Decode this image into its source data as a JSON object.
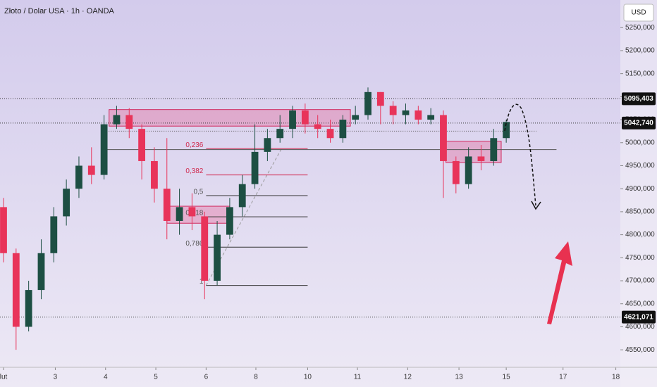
{
  "chart_data": {
    "type": "candlestick",
    "title": "Złoto / Dolar USA · 1h · OANDA",
    "currency": "USD",
    "up_color": "#1d4f43",
    "down_color": "#e8345a",
    "x": [
      0,
      0.25,
      0.5,
      0.75,
      1,
      1.25,
      1.5,
      1.75,
      2,
      2.25,
      2.5,
      2.75,
      3,
      3.25,
      3.5,
      3.75,
      4,
      4.25,
      4.5,
      4.75,
      5,
      5.25,
      5.5,
      5.75,
      6,
      6.25,
      6.5,
      6.75,
      7,
      7.25,
      7.5,
      7.75,
      8,
      8.25,
      8.5,
      8.75,
      9,
      9.25,
      9.5,
      9.75,
      10
    ],
    "open": [
      4860,
      4760,
      4600,
      4680,
      4760,
      4840,
      4900,
      4950,
      4930,
      5040,
      5060,
      5030,
      4960,
      4900,
      4830,
      4860,
      4840,
      4700,
      4800,
      4860,
      4910,
      4980,
      5010,
      5030,
      5070,
      5040,
      5030,
      5010,
      5050,
      5060,
      5110,
      5080,
      5060,
      5070,
      5050,
      5060,
      4960,
      4910,
      4970,
      4960,
      5010
    ],
    "high": [
      4880,
      4770,
      4700,
      4790,
      4860,
      4920,
      4970,
      4990,
      5060,
      5080,
      5075,
      5040,
      4990,
      5010,
      4900,
      4890,
      4850,
      4830,
      4880,
      4930,
      5040,
      5030,
      5060,
      5080,
      5085,
      5060,
      5050,
      5060,
      5080,
      5120,
      5110,
      5090,
      5085,
      5080,
      5075,
      5070,
      4970,
      4990,
      4995,
      5030,
      5050
    ],
    "low": [
      4740,
      4550,
      4590,
      4660,
      4740,
      4820,
      4880,
      4910,
      4920,
      5030,
      5010,
      4920,
      4870,
      4790,
      4800,
      4810,
      4660,
      4690,
      4790,
      4840,
      4900,
      4960,
      5000,
      5010,
      5020,
      5010,
      5000,
      5000,
      5040,
      5050,
      5040,
      5040,
      5040,
      5040,
      5040,
      4880,
      4890,
      4900,
      4940,
      4950,
      5000
    ],
    "close": [
      4760,
      4600,
      4680,
      4760,
      4840,
      4900,
      4950,
      4930,
      5040,
      5060,
      5030,
      4960,
      4900,
      4830,
      4860,
      4840,
      4700,
      4800,
      4860,
      4910,
      4980,
      5010,
      5030,
      5070,
      5040,
      5030,
      5010,
      5050,
      5060,
      5110,
      5080,
      5060,
      5070,
      5050,
      5060,
      4960,
      4910,
      4970,
      4960,
      5010,
      5045
    ],
    "xlim": [
      -0.07,
      12.27
    ],
    "ylim": [
      4512,
      5310
    ],
    "xticks": [
      {
        "value": 0,
        "label": "lut"
      },
      {
        "value": 1.03,
        "label": "3"
      },
      {
        "value": 2.03,
        "label": "4"
      },
      {
        "value": 3.03,
        "label": "5"
      },
      {
        "value": 4.03,
        "label": "6"
      },
      {
        "value": 5.02,
        "label": "8"
      },
      {
        "value": 6.05,
        "label": "10"
      },
      {
        "value": 7.04,
        "label": "11"
      },
      {
        "value": 8.04,
        "label": "12"
      },
      {
        "value": 9.06,
        "label": "13"
      },
      {
        "value": 10.0,
        "label": "15"
      },
      {
        "value": 11.13,
        "label": "17"
      },
      {
        "value": 12.18,
        "label": "18"
      }
    ],
    "yticks": [
      {
        "value": 4550,
        "label": "4550,000"
      },
      {
        "value": 4600,
        "label": "4600,000"
      },
      {
        "value": 4650,
        "label": "4650,000"
      },
      {
        "value": 4700,
        "label": "4700,000"
      },
      {
        "value": 4750,
        "label": "4750,000"
      },
      {
        "value": 4800,
        "label": "4800,000"
      },
      {
        "value": 4850,
        "label": "4850,000"
      },
      {
        "value": 4900,
        "label": "4900,000"
      },
      {
        "value": 4950,
        "label": "4950,000"
      },
      {
        "value": 5000,
        "label": "5000,000"
      },
      {
        "value": 5050,
        "label": "5050,000"
      },
      {
        "value": 5100,
        "label": "5100,000"
      },
      {
        "value": 5150,
        "label": "5150,000"
      },
      {
        "value": 5200,
        "label": "5200,000"
      },
      {
        "value": 5250,
        "label": "5250,000"
      }
    ],
    "price_lines": [
      {
        "value": 5095.403,
        "label": "5095,403"
      },
      {
        "value": 5042.74,
        "label": "5042,740"
      },
      {
        "value": 4621.071,
        "label": "4621,071"
      }
    ],
    "fib_levels": [
      {
        "value": 4987,
        "label": "0,236"
      },
      {
        "value": 4930,
        "label": "0,382"
      },
      {
        "value": 4885,
        "label": "0,5"
      },
      {
        "value": 4839,
        "label": "0,618"
      },
      {
        "value": 4773,
        "label": "0,786"
      },
      {
        "value": 4690,
        "label": "1"
      }
    ],
    "fib_x": [
      4.03,
      6.05
    ],
    "zones": [
      {
        "x": [
          2.1,
          6.9
        ],
        "y": [
          5036,
          5072
        ]
      },
      {
        "x": [
          3.25,
          4.5
        ],
        "y": [
          4825,
          4862
        ]
      },
      {
        "x": [
          8.8,
          9.9
        ],
        "y": [
          4957,
          5003
        ]
      }
    ]
  }
}
